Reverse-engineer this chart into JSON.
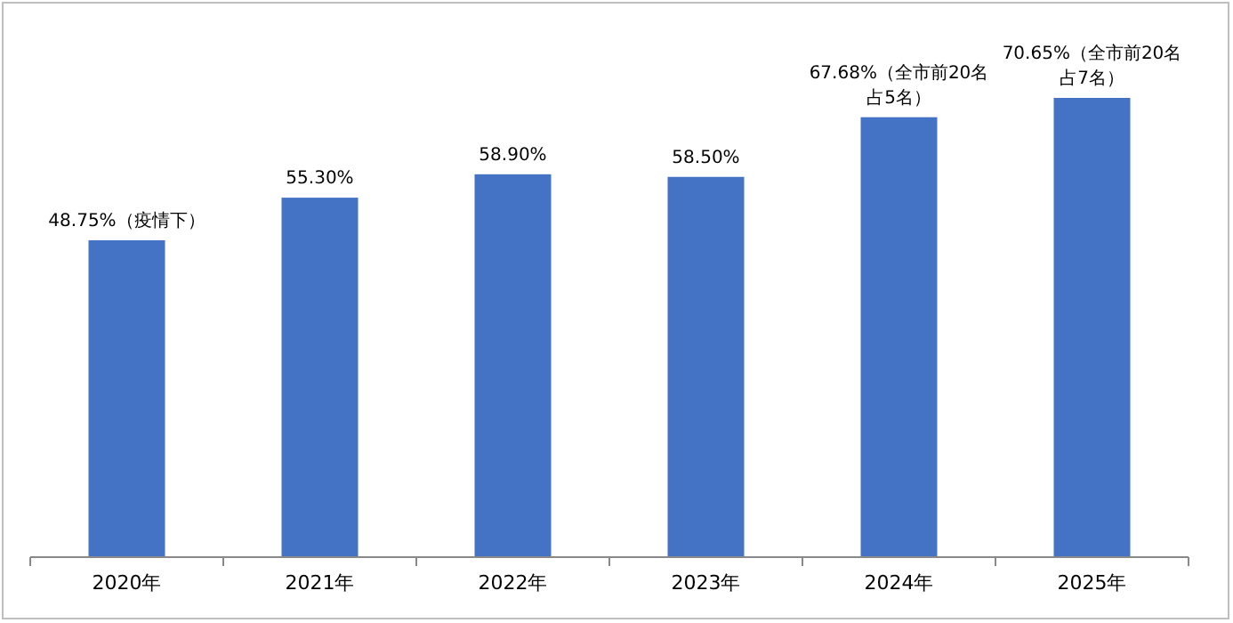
{
  "chart_data": {
    "type": "bar",
    "categories": [
      "2020年",
      "2021年",
      "2022年",
      "2023年",
      "2024年",
      "2025年"
    ],
    "values": [
      48.75,
      55.3,
      58.9,
      58.5,
      67.68,
      70.65
    ],
    "value_labels": [
      "48.75%（疫情下）",
      "55.30%",
      "58.90%",
      "58.50%",
      "67.68%（全市前20名占5名）",
      "70.65%（全市前20名占7名）"
    ],
    "color": "#4472c4",
    "grid": false
  }
}
